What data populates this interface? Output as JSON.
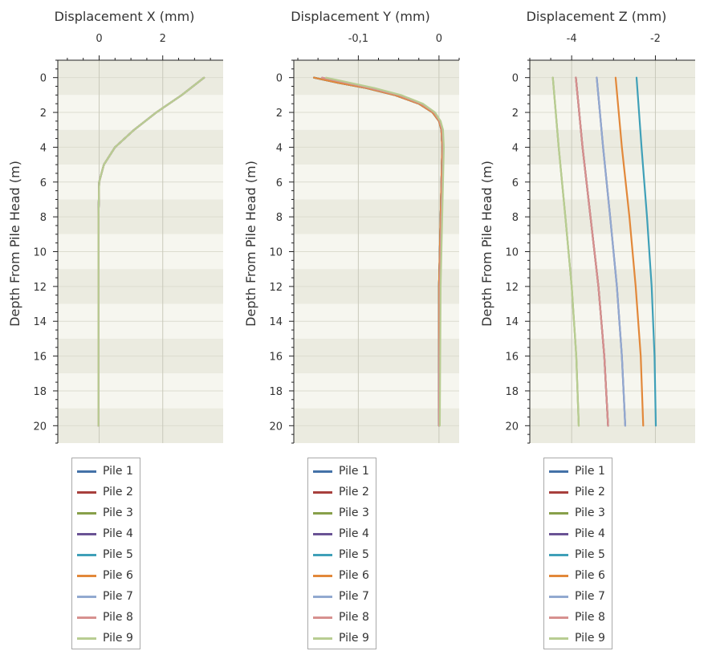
{
  "chart_data": [
    {
      "type": "line",
      "title": "Displacement X (mm)",
      "xlabel": "Displacement X (mm)",
      "ylabel": "Depth From Pile Head (m)",
      "xlim": [
        -1.3,
        3.9
      ],
      "ylim": [
        -1,
        21
      ],
      "y_reversed": true,
      "x_axis_position": "top",
      "x_ticks": [
        0,
        2
      ],
      "x_tick_labels": [
        "0",
        "2"
      ],
      "y_ticks": [
        0,
        2,
        4,
        6,
        8,
        10,
        12,
        14,
        16,
        18,
        20
      ],
      "grid": true,
      "legend_position": "bottom",
      "series": [
        {
          "name": "Pile 1",
          "color": "#4472a8",
          "x": [
            3.3,
            2.6,
            1.8,
            1.1,
            0.5,
            0.15,
            0.0,
            -0.02,
            -0.02,
            -0.02,
            -0.02
          ],
          "y": [
            0,
            1,
            2,
            3,
            4,
            5,
            6,
            8,
            12,
            16,
            20
          ]
        },
        {
          "name": "Pile 2",
          "color": "#a8403d",
          "x": [
            3.3,
            2.6,
            1.8,
            1.1,
            0.5,
            0.15,
            0.0,
            -0.02,
            -0.02,
            -0.02,
            -0.02
          ],
          "y": [
            0,
            1,
            2,
            3,
            4,
            5,
            6,
            8,
            12,
            16,
            20
          ]
        },
        {
          "name": "Pile 3",
          "color": "#88a04a",
          "x": [
            3.3,
            2.6,
            1.8,
            1.1,
            0.5,
            0.15,
            0.0,
            -0.02,
            -0.02,
            -0.02,
            -0.02
          ],
          "y": [
            0,
            1,
            2,
            3,
            4,
            5,
            6,
            8,
            12,
            16,
            20
          ]
        },
        {
          "name": "Pile 4",
          "color": "#6a5395",
          "x": [
            3.3,
            2.6,
            1.8,
            1.1,
            0.5,
            0.15,
            0.0,
            -0.02,
            -0.02,
            -0.02,
            -0.02
          ],
          "y": [
            0,
            1,
            2,
            3,
            4,
            5,
            6,
            8,
            12,
            16,
            20
          ]
        },
        {
          "name": "Pile 5",
          "color": "#3fa0b8",
          "x": [
            3.3,
            2.6,
            1.8,
            1.1,
            0.5,
            0.15,
            0.0,
            -0.02,
            -0.02,
            -0.02,
            -0.02
          ],
          "y": [
            0,
            1,
            2,
            3,
            4,
            5,
            6,
            8,
            12,
            16,
            20
          ]
        },
        {
          "name": "Pile 6",
          "color": "#e2883a",
          "x": [
            3.3,
            2.6,
            1.8,
            1.1,
            0.5,
            0.15,
            0.0,
            -0.02,
            -0.02,
            -0.02,
            -0.02
          ],
          "y": [
            0,
            1,
            2,
            3,
            4,
            5,
            6,
            8,
            12,
            16,
            20
          ]
        },
        {
          "name": "Pile 7",
          "color": "#92a9d0",
          "x": [
            3.3,
            2.6,
            1.8,
            1.1,
            0.5,
            0.15,
            0.0,
            -0.02,
            -0.02,
            -0.02,
            -0.02
          ],
          "y": [
            0,
            1,
            2,
            3,
            4,
            5,
            6,
            8,
            12,
            16,
            20
          ]
        },
        {
          "name": "Pile 8",
          "color": "#d7918f",
          "x": [
            3.3,
            2.6,
            1.8,
            1.1,
            0.5,
            0.15,
            0.0,
            -0.02,
            -0.02,
            -0.02,
            -0.02
          ],
          "y": [
            0,
            1,
            2,
            3,
            4,
            5,
            6,
            8,
            12,
            16,
            20
          ]
        },
        {
          "name": "Pile 9",
          "color": "#b8cd92",
          "x": [
            3.3,
            2.6,
            1.8,
            1.1,
            0.5,
            0.15,
            0.0,
            -0.02,
            -0.02,
            -0.02,
            -0.02
          ],
          "y": [
            0,
            1,
            2,
            3,
            4,
            5,
            6,
            8,
            12,
            16,
            20
          ]
        }
      ]
    },
    {
      "type": "line",
      "title": "Displacement Y (mm)",
      "xlabel": "Displacement Y (mm)",
      "ylabel": "Depth From Pile Head (m)",
      "xlim": [
        -0.18,
        0.025
      ],
      "ylim": [
        -1,
        21
      ],
      "y_reversed": true,
      "x_axis_position": "top",
      "x_ticks": [
        -0.1,
        0
      ],
      "x_tick_labels": [
        "-0,1",
        "0"
      ],
      "y_ticks": [
        0,
        2,
        4,
        6,
        8,
        10,
        12,
        14,
        16,
        18,
        20
      ],
      "grid": true,
      "legend_position": "bottom",
      "series": [
        {
          "name": "Pile 1",
          "color": "#4472a8",
          "x": [
            -0.155,
            -0.125,
            -0.09,
            -0.055,
            -0.025,
            -0.008,
            0.0,
            0.003,
            0.004,
            0.003,
            0.002,
            0.0,
            0.0
          ],
          "y": [
            0,
            0.3,
            0.6,
            1.0,
            1.5,
            2.0,
            2.5,
            3.0,
            4.0,
            6.0,
            8.0,
            12,
            20
          ]
        },
        {
          "name": "Pile 2",
          "color": "#a8403d",
          "x": [
            -0.155,
            -0.125,
            -0.09,
            -0.055,
            -0.025,
            -0.008,
            0.0,
            0.003,
            0.004,
            0.003,
            0.002,
            0.0,
            0.0
          ],
          "y": [
            0,
            0.3,
            0.6,
            1.0,
            1.5,
            2.0,
            2.5,
            3.0,
            4.0,
            6.0,
            8.0,
            12,
            20
          ]
        },
        {
          "name": "Pile 3",
          "color": "#88a04a",
          "x": [
            -0.155,
            -0.125,
            -0.09,
            -0.055,
            -0.025,
            -0.008,
            0.0,
            0.003,
            0.004,
            0.003,
            0.002,
            0.0,
            0.0
          ],
          "y": [
            0,
            0.3,
            0.6,
            1.0,
            1.5,
            2.0,
            2.5,
            3.0,
            4.0,
            6.0,
            8.0,
            12,
            20
          ]
        },
        {
          "name": "Pile 4",
          "color": "#6a5395",
          "x": [
            -0.155,
            -0.125,
            -0.09,
            -0.055,
            -0.025,
            -0.008,
            0.0,
            0.003,
            0.004,
            0.003,
            0.002,
            0.0,
            0.0
          ],
          "y": [
            0,
            0.3,
            0.6,
            1.0,
            1.5,
            2.0,
            2.5,
            3.0,
            4.0,
            6.0,
            8.0,
            12,
            20
          ]
        },
        {
          "name": "Pile 5",
          "color": "#3fa0b8",
          "x": [
            -0.155,
            -0.125,
            -0.09,
            -0.055,
            -0.025,
            -0.008,
            0.0,
            0.003,
            0.004,
            0.003,
            0.002,
            0.0,
            0.0
          ],
          "y": [
            0,
            0.3,
            0.6,
            1.0,
            1.5,
            2.0,
            2.5,
            3.0,
            4.0,
            6.0,
            8.0,
            12,
            20
          ]
        },
        {
          "name": "Pile 6",
          "color": "#e2883a",
          "x": [
            -0.155,
            -0.125,
            -0.09,
            -0.055,
            -0.025,
            -0.008,
            0.0,
            0.003,
            0.004,
            0.003,
            0.002,
            0.0,
            0.0
          ],
          "y": [
            0,
            0.3,
            0.6,
            1.0,
            1.5,
            2.0,
            2.5,
            3.0,
            4.0,
            6.0,
            8.0,
            12,
            20
          ]
        },
        {
          "name": "Pile 7",
          "color": "#92a9d0",
          "x": [
            -0.145,
            -0.115,
            -0.085,
            -0.05,
            -0.022,
            -0.006,
            0.001,
            0.004,
            0.005,
            0.004,
            0.003,
            0.001,
            0.0
          ],
          "y": [
            0,
            0.3,
            0.6,
            1.0,
            1.5,
            2.0,
            2.5,
            3.0,
            4.0,
            6.0,
            8.0,
            12,
            20
          ]
        },
        {
          "name": "Pile 8",
          "color": "#d7918f",
          "x": [
            -0.145,
            -0.115,
            -0.085,
            -0.05,
            -0.022,
            -0.006,
            0.001,
            0.004,
            0.005,
            0.004,
            0.003,
            0.001,
            0.0
          ],
          "y": [
            0,
            0.3,
            0.6,
            1.0,
            1.5,
            2.0,
            2.5,
            3.0,
            4.0,
            6.0,
            8.0,
            12,
            20
          ]
        },
        {
          "name": "Pile 9",
          "color": "#b8cd92",
          "x": [
            -0.14,
            -0.11,
            -0.08,
            -0.047,
            -0.02,
            -0.005,
            0.002,
            0.005,
            0.006,
            0.005,
            0.004,
            0.002,
            0.001
          ],
          "y": [
            0,
            0.3,
            0.6,
            1.0,
            1.5,
            2.0,
            2.5,
            3.0,
            4.0,
            6.0,
            8.0,
            12,
            20
          ]
        }
      ]
    },
    {
      "type": "line",
      "title": "Displacement Z  (mm)",
      "xlabel": "Displacement Z  (mm)",
      "ylabel": "Depth From Pile Head (m)",
      "xlim": [
        -5.0,
        -1.05
      ],
      "ylim": [
        -1,
        21
      ],
      "y_reversed": true,
      "x_axis_position": "top",
      "x_ticks": [
        -4,
        -2
      ],
      "x_tick_labels": [
        "-4",
        "-2"
      ],
      "y_ticks": [
        0,
        2,
        4,
        6,
        8,
        10,
        12,
        14,
        16,
        18,
        20
      ],
      "grid": true,
      "legend_position": "bottom",
      "series": [
        {
          "name": "Pile 1",
          "color": "#4472a8",
          "x": [
            -3.9,
            -3.74,
            -3.55,
            -3.36,
            -3.22,
            -3.13
          ],
          "y": [
            0,
            4,
            8,
            12,
            16,
            20
          ]
        },
        {
          "name": "Pile 2",
          "color": "#a8403d",
          "x": [
            -3.9,
            -3.74,
            -3.55,
            -3.36,
            -3.22,
            -3.13
          ],
          "y": [
            0,
            4,
            8,
            12,
            16,
            20
          ]
        },
        {
          "name": "Pile 3",
          "color": "#88a04a",
          "x": [
            -4.45,
            -4.31,
            -4.15,
            -4.0,
            -3.89,
            -3.83
          ],
          "y": [
            0,
            4,
            8,
            12,
            16,
            20
          ]
        },
        {
          "name": "Pile 4",
          "color": "#6a5395",
          "x": [
            -3.4,
            -3.25,
            -3.08,
            -2.92,
            -2.8,
            -2.72
          ],
          "y": [
            0,
            4,
            8,
            12,
            16,
            20
          ]
        },
        {
          "name": "Pile 5",
          "color": "#3fa0b8",
          "x": [
            -2.45,
            -2.33,
            -2.2,
            -2.09,
            -2.02,
            -1.99
          ],
          "y": [
            0,
            4,
            8,
            12,
            16,
            20
          ]
        },
        {
          "name": "Pile 6",
          "color": "#e2883a",
          "x": [
            -2.95,
            -2.8,
            -2.62,
            -2.47,
            -2.35,
            -2.29
          ],
          "y": [
            0,
            4,
            8,
            12,
            16,
            20
          ]
        },
        {
          "name": "Pile 7",
          "color": "#92a9d0",
          "x": [
            -3.4,
            -3.25,
            -3.08,
            -2.92,
            -2.8,
            -2.72
          ],
          "y": [
            0,
            4,
            8,
            12,
            16,
            20
          ]
        },
        {
          "name": "Pile 8",
          "color": "#d7918f",
          "x": [
            -3.9,
            -3.74,
            -3.55,
            -3.36,
            -3.22,
            -3.13
          ],
          "y": [
            0,
            4,
            8,
            12,
            16,
            20
          ]
        },
        {
          "name": "Pile 9",
          "color": "#b8cd92",
          "x": [
            -4.45,
            -4.31,
            -4.15,
            -4.0,
            -3.89,
            -3.83
          ],
          "y": [
            0,
            4,
            8,
            12,
            16,
            20
          ]
        }
      ]
    }
  ]
}
